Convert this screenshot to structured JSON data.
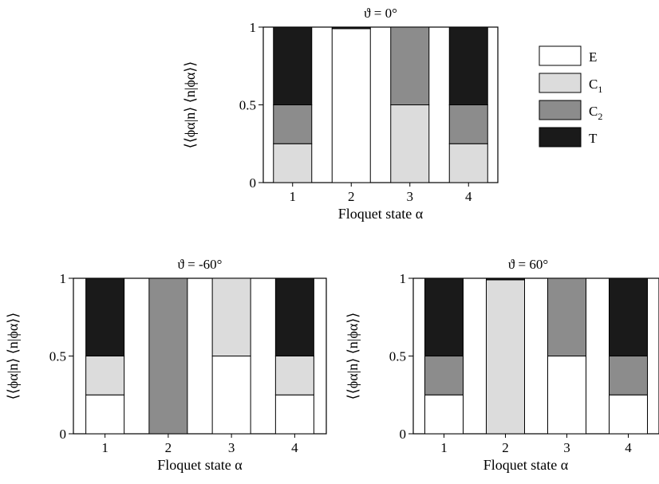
{
  "chart_data": [
    {
      "type": "bar",
      "stacked": true,
      "title": "ϑ = 0°",
      "xlabel": "Floquet state α",
      "ylabel": "⟨⟨ϕα|n⟩ ⟨n|ϕα⟩⟩",
      "ylim": [
        0,
        1
      ],
      "yticks": [
        "0",
        "0.5",
        "1"
      ],
      "categories": [
        "1",
        "2",
        "3",
        "4"
      ],
      "series": [
        {
          "name": "E",
          "values": [
            0.0,
            0.99,
            0.0,
            0.0
          ]
        },
        {
          "name": "C1",
          "values": [
            0.25,
            0.0,
            0.5,
            0.25
          ]
        },
        {
          "name": "C2",
          "values": [
            0.25,
            0.0,
            0.5,
            0.25
          ]
        },
        {
          "name": "T",
          "values": [
            0.5,
            0.01,
            0.0,
            0.5
          ]
        }
      ]
    },
    {
      "type": "bar",
      "stacked": true,
      "title": "ϑ = -60°",
      "xlabel": "Floquet state α",
      "ylabel": "⟨⟨ϕα|n⟩ ⟨n|ϕα⟩⟩",
      "ylim": [
        0,
        1
      ],
      "yticks": [
        "0",
        "0.5",
        "1"
      ],
      "categories": [
        "1",
        "2",
        "3",
        "4"
      ],
      "series": [
        {
          "name": "E",
          "values": [
            0.25,
            0.0,
            0.5,
            0.25
          ]
        },
        {
          "name": "C1",
          "values": [
            0.25,
            0.0,
            0.5,
            0.25
          ]
        },
        {
          "name": "C2",
          "values": [
            0.0,
            1.0,
            0.0,
            0.0
          ]
        },
        {
          "name": "T",
          "values": [
            0.5,
            0.0,
            0.0,
            0.5
          ]
        }
      ]
    },
    {
      "type": "bar",
      "stacked": true,
      "title": "ϑ = 60°",
      "xlabel": "Floquet state α",
      "ylabel": "⟨⟨ϕα|n⟩ ⟨n|ϕα⟩⟩",
      "ylim": [
        0,
        1
      ],
      "yticks": [
        "0",
        "0.5",
        "1"
      ],
      "categories": [
        "1",
        "2",
        "3",
        "4"
      ],
      "series": [
        {
          "name": "E",
          "values": [
            0.25,
            0.0,
            0.5,
            0.25
          ]
        },
        {
          "name": "C1",
          "values": [
            0.0,
            0.99,
            0.0,
            0.0
          ]
        },
        {
          "name": "C2",
          "values": [
            0.25,
            0.0,
            0.5,
            0.25
          ]
        },
        {
          "name": "T",
          "values": [
            0.5,
            0.01,
            0.0,
            0.5
          ]
        }
      ]
    }
  ],
  "legend": {
    "position": "right of top panel",
    "entries": [
      {
        "series": "E",
        "label": "E",
        "sub": "",
        "color": "#ffffff"
      },
      {
        "series": "C1",
        "label": "C",
        "sub": "1",
        "color": "#dcdcdc"
      },
      {
        "series": "C2",
        "label": "C",
        "sub": "2",
        "color": "#8c8c8c"
      },
      {
        "series": "T",
        "label": "T",
        "sub": "",
        "color": "#1a1a1a"
      }
    ]
  }
}
